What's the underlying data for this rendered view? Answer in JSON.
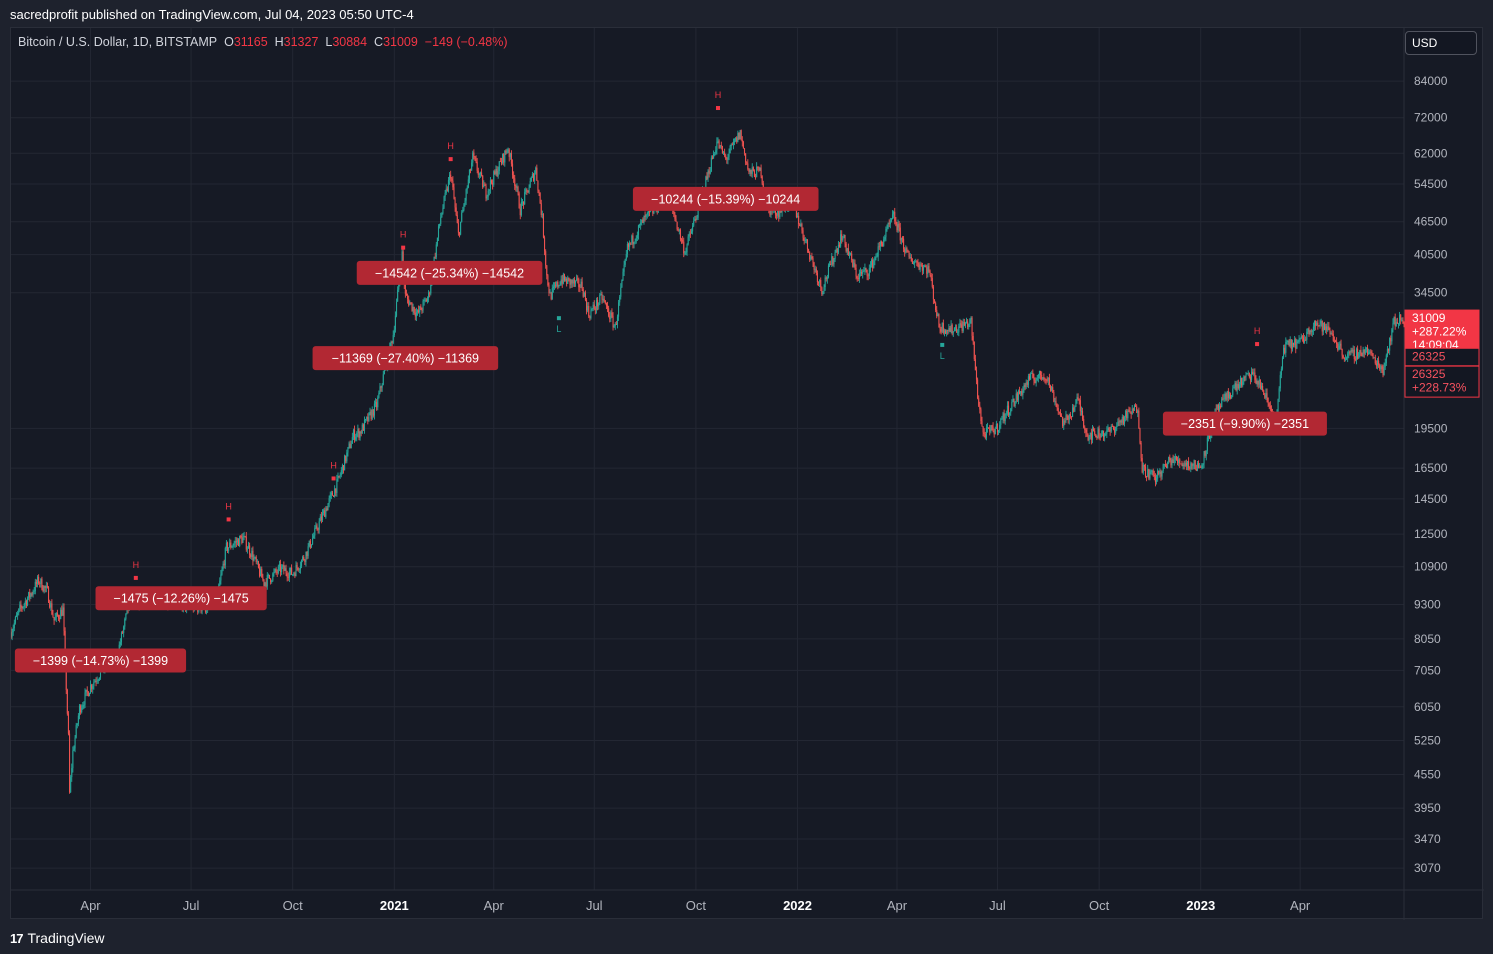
{
  "header": {
    "caption": "sacredprofit published on TradingView.com, Jul 04, 2023 05:50 UTC-4"
  },
  "symbol": {
    "name": "Bitcoin / U.S. Dollar, 1D, BITSTAMP",
    "open_label": "O",
    "open": "31165",
    "high_label": "H",
    "high": "31327",
    "low_label": "L",
    "low": "30884",
    "close_label": "C",
    "close": "31009",
    "change": "−149 (−0.48%)"
  },
  "currency": "USD",
  "footer": {
    "brand": "TradingView",
    "logo_glyph": "17"
  },
  "colors": {
    "background": "#161a25",
    "up": "#26a69a",
    "down": "#ef5350",
    "label_bg": "#b22833",
    "marker_red": "#f23645",
    "marker_green": "#26a69a"
  },
  "chart_data": {
    "type": "line",
    "scale": "log",
    "grid": true,
    "x_range": [
      "2020-01-20",
      "2023-07-04"
    ],
    "ylim": [
      2800,
      105000
    ],
    "y_ticks": [
      3070,
      3470,
      3950,
      4550,
      5250,
      6050,
      7050,
      8050,
      9300,
      10900,
      12500,
      14500,
      16500,
      19500,
      34500,
      40500,
      46500,
      54500,
      62000,
      72000,
      84000
    ],
    "x_ticks": [
      {
        "date": "2020-04-01",
        "label": "Apr",
        "bold": false
      },
      {
        "date": "2020-07-01",
        "label": "Jul",
        "bold": false
      },
      {
        "date": "2020-10-01",
        "label": "Oct",
        "bold": false
      },
      {
        "date": "2021-01-01",
        "label": "2021",
        "bold": true
      },
      {
        "date": "2021-04-01",
        "label": "Apr",
        "bold": false
      },
      {
        "date": "2021-07-01",
        "label": "Jul",
        "bold": false
      },
      {
        "date": "2021-10-01",
        "label": "Oct",
        "bold": false
      },
      {
        "date": "2022-01-01",
        "label": "2022",
        "bold": true
      },
      {
        "date": "2022-04-01",
        "label": "Apr",
        "bold": false
      },
      {
        "date": "2022-07-01",
        "label": "Jul",
        "bold": false
      },
      {
        "date": "2022-10-01",
        "label": "Oct",
        "bold": false
      },
      {
        "date": "2023-01-01",
        "label": "2023",
        "bold": true
      },
      {
        "date": "2023-04-01",
        "label": "Apr",
        "bold": false
      }
    ],
    "price_path": [
      [
        "2020-01-20",
        8300
      ],
      [
        "2020-01-28",
        9100
      ],
      [
        "2020-02-08",
        9800
      ],
      [
        "2020-02-14",
        10300
      ],
      [
        "2020-02-22",
        9800
      ],
      [
        "2020-02-28",
        8700
      ],
      [
        "2020-03-07",
        9100
      ],
      [
        "2020-03-12",
        5300
      ],
      [
        "2020-03-13",
        4200
      ],
      [
        "2020-03-16",
        5000
      ],
      [
        "2020-03-22",
        6000
      ],
      [
        "2020-04-01",
        6600
      ],
      [
        "2020-04-10",
        7000
      ],
      [
        "2020-04-25",
        7500
      ],
      [
        "2020-05-07",
        9500
      ],
      [
        "2020-05-15",
        9300
      ],
      [
        "2020-05-31",
        9600
      ],
      [
        "2020-06-15",
        9400
      ],
      [
        "2020-07-01",
        9200
      ],
      [
        "2020-07-15",
        9200
      ],
      [
        "2020-07-25",
        9700
      ],
      [
        "2020-08-02",
        11800
      ],
      [
        "2020-08-17",
        12300
      ],
      [
        "2020-08-25",
        11500
      ],
      [
        "2020-09-05",
        10200
      ],
      [
        "2020-09-20",
        10800
      ],
      [
        "2020-10-01",
        10600
      ],
      [
        "2020-10-12",
        11400
      ],
      [
        "2020-10-25",
        13100
      ],
      [
        "2020-11-10",
        15400
      ],
      [
        "2020-11-25",
        19000
      ],
      [
        "2020-12-01",
        19200
      ],
      [
        "2020-12-16",
        21500
      ],
      [
        "2020-12-31",
        29000
      ],
      [
        "2021-01-08",
        40500
      ],
      [
        "2021-01-11",
        34000
      ],
      [
        "2021-01-22",
        31500
      ],
      [
        "2021-02-01",
        34000
      ],
      [
        "2021-02-12",
        47500
      ],
      [
        "2021-02-21",
        57000
      ],
      [
        "2021-02-28",
        44000
      ],
      [
        "2021-03-13",
        61000
      ],
      [
        "2021-03-25",
        52500
      ],
      [
        "2021-04-14",
        63500
      ],
      [
        "2021-04-25",
        49000
      ],
      [
        "2021-05-09",
        58000
      ],
      [
        "2021-05-15",
        47000
      ],
      [
        "2021-05-19",
        37000
      ],
      [
        "2021-05-22",
        34000
      ],
      [
        "2021-06-01",
        36500
      ],
      [
        "2021-06-20",
        35500
      ],
      [
        "2021-06-26",
        31500
      ],
      [
        "2021-07-08",
        33800
      ],
      [
        "2021-07-20",
        29800
      ],
      [
        "2021-07-31",
        41500
      ],
      [
        "2021-08-14",
        46500
      ],
      [
        "2021-09-06",
        52000
      ],
      [
        "2021-09-21",
        41000
      ],
      [
        "2021-10-01",
        47500
      ],
      [
        "2021-10-20",
        65000
      ],
      [
        "2021-10-28",
        60500
      ],
      [
        "2021-11-10",
        67500
      ],
      [
        "2021-11-18",
        57000
      ],
      [
        "2021-11-29",
        57500
      ],
      [
        "2021-12-04",
        49000
      ],
      [
        "2021-12-15",
        48500
      ],
      [
        "2021-12-27",
        51000
      ],
      [
        "2022-01-10",
        41800
      ],
      [
        "2022-01-23",
        35000
      ],
      [
        "2022-02-10",
        44000
      ],
      [
        "2022-02-24",
        37000
      ],
      [
        "2022-03-07",
        38000
      ],
      [
        "2022-03-29",
        47500
      ],
      [
        "2022-04-11",
        40000
      ],
      [
        "2022-04-30",
        38000
      ],
      [
        "2022-05-09",
        30000
      ],
      [
        "2022-05-20",
        29500
      ],
      [
        "2022-06-07",
        30500
      ],
      [
        "2022-06-13",
        22500
      ],
      [
        "2022-06-18",
        19000
      ],
      [
        "2022-06-30",
        19500
      ],
      [
        "2022-07-10",
        21000
      ],
      [
        "2022-07-30",
        24000
      ],
      [
        "2022-08-14",
        24400
      ],
      [
        "2022-08-30",
        19800
      ],
      [
        "2022-09-12",
        22000
      ],
      [
        "2022-09-20",
        19000
      ],
      [
        "2022-10-10",
        19200
      ],
      [
        "2022-10-25",
        20500
      ],
      [
        "2022-11-05",
        21300
      ],
      [
        "2022-11-09",
        16500
      ],
      [
        "2022-11-21",
        15800
      ],
      [
        "2022-12-05",
        17100
      ],
      [
        "2022-12-20",
        16800
      ],
      [
        "2023-01-01",
        16600
      ],
      [
        "2023-01-14",
        20800
      ],
      [
        "2023-01-31",
        23100
      ],
      [
        "2023-02-16",
        24500
      ],
      [
        "2023-02-25",
        23200
      ],
      [
        "2023-03-10",
        20000
      ],
      [
        "2023-03-17",
        27400
      ],
      [
        "2023-04-03",
        28200
      ],
      [
        "2023-04-14",
        30500
      ],
      [
        "2023-04-28",
        29300
      ],
      [
        "2023-05-12",
        26300
      ],
      [
        "2023-05-31",
        27100
      ],
      [
        "2023-06-15",
        25000
      ],
      [
        "2023-06-25",
        30500
      ],
      [
        "2023-07-04",
        31009
      ]
    ],
    "drawdown_labels": [
      {
        "text": "−1399 (−14.73%) −1399",
        "date": "2020-04-10",
        "price": 7350
      },
      {
        "text": "−1475 (−12.26%) −1475",
        "date": "2020-06-22",
        "price": 9550
      },
      {
        "text": "−14542 (−25.34%) −14542",
        "date": "2021-02-20",
        "price": 37500
      },
      {
        "text": "−11369 (−27.40%) −11369",
        "date": "2021-01-11",
        "price": 26200
      },
      {
        "text": "−10244 (−15.39%) −10244",
        "date": "2021-10-28",
        "price": 51200
      },
      {
        "text": "−2351 (−9.90%) −2351",
        "date": "2023-02-10",
        "price": 19900
      }
    ],
    "high_markers": [
      {
        "date": "2020-05-12",
        "price": 10400
      },
      {
        "date": "2020-08-04",
        "price": 13300
      },
      {
        "date": "2020-11-07",
        "price": 15800
      },
      {
        "date": "2021-01-09",
        "price": 41700
      },
      {
        "date": "2021-02-21",
        "price": 60500
      },
      {
        "date": "2021-10-21",
        "price": 75000
      },
      {
        "date": "2023-02-21",
        "price": 27800
      }
    ],
    "low_markers": [
      {
        "date": "2021-05-30",
        "price": 31000
      },
      {
        "date": "2022-05-12",
        "price": 27700
      }
    ],
    "price_tags": [
      {
        "lines": [
          "31009",
          "+287.22%",
          "14:09:04"
        ],
        "price": 31009,
        "style": "filled"
      },
      {
        "lines": [
          "26325"
        ],
        "price": 26325,
        "style": "outline"
      },
      {
        "lines": [
          "26325",
          "+228.73%"
        ],
        "price": 24500,
        "style": "outline"
      }
    ],
    "marker_h": "H",
    "marker_l": "L"
  }
}
